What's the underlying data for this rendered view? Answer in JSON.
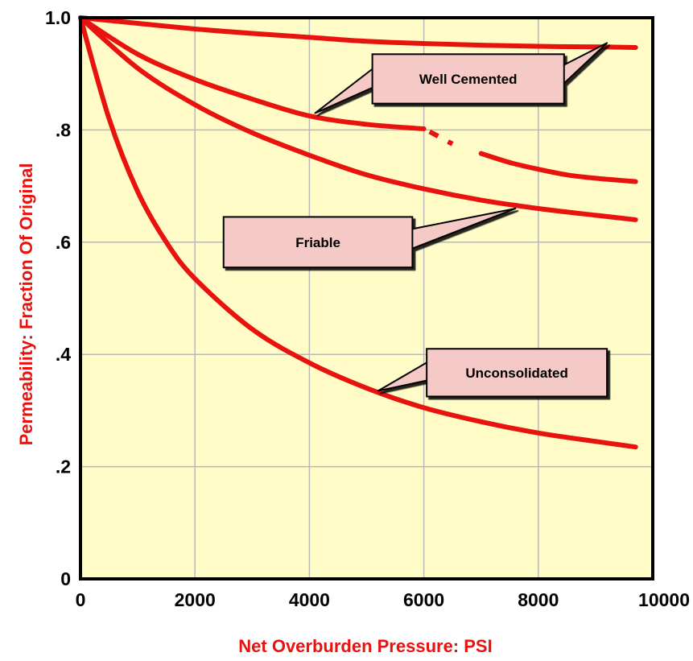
{
  "chart_data": {
    "type": "line",
    "title": "",
    "xlabel": "Net Overburden Pressure: PSI",
    "ylabel": "Permeability: Fraction Of Original",
    "xlim": [
      0,
      10000
    ],
    "ylim": [
      0,
      1.0
    ],
    "x_ticks": [
      0,
      2000,
      4000,
      6000,
      8000,
      10000
    ],
    "x_tick_labels": [
      "0",
      "2000",
      "4000",
      "6000",
      "8000",
      "10000"
    ],
    "y_ticks": [
      0,
      0.2,
      0.4,
      0.6,
      0.8,
      1.0
    ],
    "y_tick_labels": [
      "0",
      ".2",
      ".4",
      ".6",
      ".8",
      "1.0"
    ],
    "grid": true,
    "legend": "none",
    "colors": {
      "plot_background": "#fffcc8",
      "curve": "#e8120f",
      "axis_title": "#e8120f",
      "grid": "#b8b8b8",
      "callout_fill": "#f5c9c5",
      "frame": "#000000"
    },
    "series": [
      {
        "x": [
          0,
          1000,
          2000,
          3000,
          4000,
          5000,
          6000,
          7000,
          8000,
          9000,
          9700
        ],
        "y": [
          1.0,
          0.99,
          0.98,
          0.972,
          0.965,
          0.958,
          0.954,
          0.951,
          0.949,
          0.948,
          0.947
        ]
      },
      {
        "x": [
          0,
          1000,
          2000,
          3000,
          4000,
          5000,
          6000
        ],
        "y": [
          1.0,
          0.935,
          0.89,
          0.855,
          0.825,
          0.81,
          0.802
        ]
      },
      {
        "x": [
          6100,
          6500
        ],
        "y": [
          0.797,
          0.775
        ],
        "dashed": true
      },
      {
        "x": [
          7000,
          7500,
          8000,
          8500,
          9000,
          9700
        ],
        "y": [
          0.758,
          0.742,
          0.73,
          0.72,
          0.714,
          0.708
        ]
      },
      {
        "x": [
          0,
          1000,
          2000,
          3000,
          4000,
          5000,
          6000,
          7000,
          8000,
          9000,
          9700
        ],
        "y": [
          1.0,
          0.91,
          0.845,
          0.795,
          0.755,
          0.72,
          0.695,
          0.675,
          0.66,
          0.648,
          0.64
        ]
      },
      {
        "x": [
          0,
          500,
          1000,
          1500,
          2000,
          3000,
          4000,
          5000,
          6000,
          7000,
          8000,
          9000,
          9700
        ],
        "y": [
          1.0,
          0.82,
          0.69,
          0.6,
          0.535,
          0.445,
          0.385,
          0.34,
          0.305,
          0.28,
          0.26,
          0.245,
          0.235
        ]
      }
    ],
    "annotations": [
      {
        "text": "Well Cemented",
        "box_x": [
          5100,
          8450
        ],
        "box_y": [
          0.847,
          0.935
        ],
        "pointers": [
          [
            4100,
            0.83
          ],
          [
            9200,
            0.955
          ]
        ]
      },
      {
        "text": "Friable",
        "box_x": [
          2500,
          5800
        ],
        "box_y": [
          0.555,
          0.645
        ],
        "pointers": [
          [
            7600,
            0.66
          ]
        ]
      },
      {
        "text": "Unconsolidated",
        "box_x": [
          6050,
          9200
        ],
        "box_y": [
          0.325,
          0.41
        ],
        "pointers": [
          [
            5200,
            0.335
          ]
        ]
      }
    ]
  }
}
